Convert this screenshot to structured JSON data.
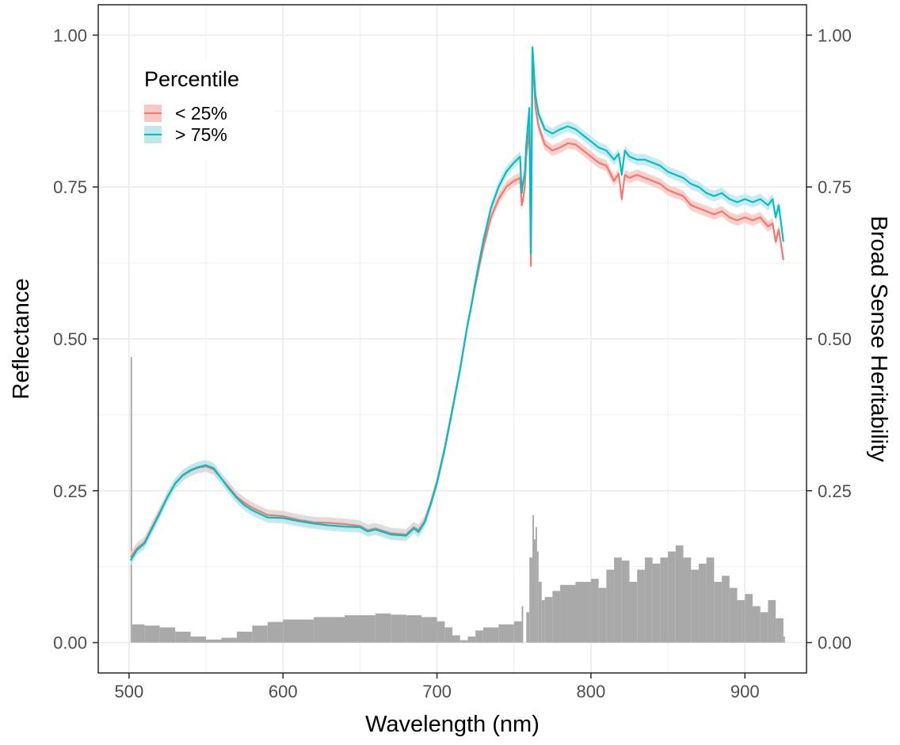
{
  "chart_data": {
    "type": "line",
    "xlabel": "Wavelength (nm)",
    "ylabel": "Reflectance",
    "y2label": "Broad Sense Heritability",
    "xlim": [
      480,
      940
    ],
    "ylim": [
      -0.05,
      1.05
    ],
    "y2lim": [
      -0.05,
      1.05
    ],
    "x_ticks": [
      500,
      600,
      700,
      800,
      900
    ],
    "x_tick_labels": [
      "500",
      "600",
      "700",
      "800",
      "900"
    ],
    "y_ticks": [
      0,
      0.25,
      0.5,
      0.75,
      1
    ],
    "y_tick_labels": [
      "0.00",
      "0.25",
      "0.50",
      "0.75",
      "1.00"
    ],
    "y2_ticks": [
      0,
      0.25,
      0.5,
      0.75,
      1
    ],
    "y2_tick_labels": [
      "0.00",
      "0.25",
      "0.50",
      "0.75",
      "1.00"
    ],
    "grid": true,
    "legend": {
      "title": "Percentile",
      "position": "top-left",
      "entries": [
        "< 25%",
        "> 75%"
      ]
    },
    "series": [
      {
        "name": "< 25%",
        "color": "#F8766D",
        "ribbon_color": "#F8C9C4",
        "x": [
          501,
          505,
          510,
          515,
          520,
          525,
          530,
          535,
          540,
          545,
          550,
          555,
          560,
          565,
          570,
          575,
          580,
          590,
          600,
          610,
          620,
          630,
          640,
          650,
          655,
          660,
          670,
          680,
          685,
          688,
          692,
          696,
          700,
          705,
          710,
          715,
          720,
          722,
          725,
          730,
          735,
          740,
          745,
          750,
          754,
          755,
          756,
          757,
          758,
          760,
          761,
          762,
          764,
          766,
          770,
          775,
          780,
          785,
          790,
          795,
          800,
          805,
          810,
          815,
          818,
          820,
          822,
          825,
          830,
          835,
          840,
          845,
          850,
          855,
          860,
          865,
          870,
          875,
          880,
          885,
          890,
          895,
          900,
          905,
          910,
          915,
          918,
          920,
          922,
          925
        ],
        "values": [
          0.14,
          0.155,
          0.165,
          0.19,
          0.215,
          0.24,
          0.262,
          0.275,
          0.283,
          0.288,
          0.29,
          0.285,
          0.27,
          0.255,
          0.24,
          0.23,
          0.222,
          0.21,
          0.208,
          0.202,
          0.198,
          0.197,
          0.195,
          0.192,
          0.185,
          0.188,
          0.18,
          0.178,
          0.19,
          0.185,
          0.2,
          0.23,
          0.265,
          0.32,
          0.385,
          0.45,
          0.525,
          0.55,
          0.59,
          0.65,
          0.7,
          0.73,
          0.75,
          0.76,
          0.765,
          0.72,
          0.73,
          0.75,
          0.8,
          0.845,
          0.62,
          0.97,
          0.88,
          0.85,
          0.82,
          0.81,
          0.815,
          0.822,
          0.82,
          0.81,
          0.8,
          0.79,
          0.785,
          0.76,
          0.772,
          0.73,
          0.77,
          0.765,
          0.77,
          0.765,
          0.76,
          0.755,
          0.745,
          0.74,
          0.735,
          0.72,
          0.715,
          0.71,
          0.705,
          0.71,
          0.7,
          0.695,
          0.7,
          0.695,
          0.7,
          0.685,
          0.69,
          0.66,
          0.68,
          0.63
        ]
      },
      {
        "name": "> 75%",
        "color": "#00BFC4",
        "ribbon_color": "#BFE8EB",
        "x": [
          501,
          505,
          510,
          515,
          520,
          525,
          530,
          535,
          540,
          545,
          550,
          555,
          560,
          565,
          570,
          575,
          580,
          590,
          600,
          610,
          620,
          630,
          640,
          650,
          655,
          660,
          670,
          680,
          685,
          688,
          692,
          696,
          700,
          705,
          710,
          715,
          720,
          722,
          725,
          730,
          735,
          740,
          745,
          750,
          754,
          755,
          756,
          757,
          758,
          760,
          761,
          762,
          764,
          766,
          770,
          775,
          780,
          785,
          790,
          795,
          800,
          805,
          810,
          815,
          818,
          820,
          822,
          825,
          830,
          835,
          840,
          845,
          850,
          855,
          860,
          865,
          870,
          875,
          880,
          885,
          890,
          895,
          900,
          905,
          910,
          915,
          918,
          920,
          922,
          925
        ],
        "values": [
          0.135,
          0.152,
          0.163,
          0.188,
          0.213,
          0.24,
          0.262,
          0.276,
          0.284,
          0.289,
          0.292,
          0.287,
          0.27,
          0.253,
          0.238,
          0.226,
          0.218,
          0.206,
          0.205,
          0.2,
          0.196,
          0.193,
          0.191,
          0.19,
          0.183,
          0.186,
          0.178,
          0.176,
          0.188,
          0.182,
          0.198,
          0.228,
          0.263,
          0.318,
          0.383,
          0.45,
          0.525,
          0.55,
          0.595,
          0.66,
          0.715,
          0.75,
          0.775,
          0.79,
          0.8,
          0.74,
          0.76,
          0.77,
          0.82,
          0.88,
          0.64,
          0.98,
          0.9,
          0.87,
          0.845,
          0.838,
          0.845,
          0.85,
          0.845,
          0.835,
          0.825,
          0.815,
          0.81,
          0.795,
          0.805,
          0.77,
          0.81,
          0.8,
          0.795,
          0.795,
          0.79,
          0.785,
          0.775,
          0.77,
          0.765,
          0.755,
          0.75,
          0.74,
          0.735,
          0.74,
          0.73,
          0.725,
          0.73,
          0.725,
          0.73,
          0.72,
          0.73,
          0.7,
          0.72,
          0.66
        ]
      }
    ],
    "heritability": {
      "axis": "right",
      "type": "bar",
      "color": "#A9A9A9",
      "x": [
        501,
        502,
        510,
        520,
        530,
        540,
        550,
        560,
        570,
        580,
        590,
        600,
        620,
        640,
        660,
        670,
        680,
        690,
        700,
        705,
        710,
        715,
        720,
        725,
        730,
        740,
        750,
        755,
        756,
        758,
        760,
        762,
        763,
        764,
        765,
        766,
        768,
        770,
        775,
        780,
        790,
        800,
        805,
        810,
        815,
        820,
        825,
        830,
        835,
        840,
        845,
        850,
        855,
        860,
        865,
        870,
        875,
        880,
        885,
        890,
        895,
        900,
        905,
        910,
        915,
        920,
        925
      ],
      "values": [
        0.47,
        0.03,
        0.028,
        0.025,
        0.018,
        0.01,
        0.005,
        0.008,
        0.018,
        0.028,
        0.034,
        0.038,
        0.042,
        0.045,
        0.048,
        0.046,
        0.045,
        0.042,
        0.035,
        0.025,
        0.012,
        0.004,
        0.01,
        0.02,
        0.025,
        0.03,
        0.035,
        0.06,
        0.0,
        0.05,
        0.14,
        0.21,
        0.17,
        0.19,
        0.15,
        0.1,
        0.07,
        0.075,
        0.085,
        0.095,
        0.1,
        0.105,
        0.09,
        0.12,
        0.14,
        0.135,
        0.1,
        0.12,
        0.14,
        0.13,
        0.14,
        0.15,
        0.16,
        0.14,
        0.12,
        0.13,
        0.14,
        0.1,
        0.11,
        0.09,
        0.07,
        0.08,
        0.06,
        0.05,
        0.07,
        0.04,
        0.01
      ]
    }
  }
}
